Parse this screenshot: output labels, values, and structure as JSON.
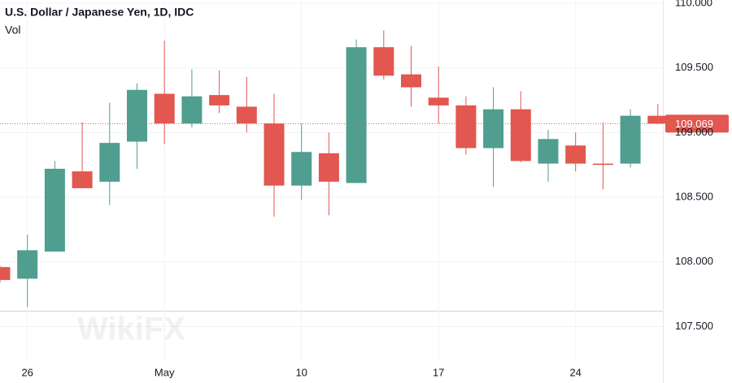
{
  "chart_data": {
    "type": "candlestick",
    "title": "U.S. Dollar / Japanese Yen, 1D, IDC",
    "subtitle": "Vol",
    "watermark": "WikiFX",
    "categories": [
      null,
      "26",
      null,
      null,
      null,
      null,
      "May",
      null,
      null,
      null,
      null,
      "10",
      null,
      null,
      null,
      null,
      "17",
      null,
      null,
      null,
      null,
      "24",
      null,
      null,
      null
    ],
    "open": [
      107.96,
      107.87,
      108.08,
      108.7,
      108.62,
      108.93,
      109.3,
      109.07,
      109.29,
      109.2,
      109.07,
      108.59,
      108.84,
      108.61,
      109.66,
      109.45,
      109.27,
      109.21,
      108.88,
      109.18,
      108.76,
      108.9,
      108.76,
      108.76,
      109.13
    ],
    "high": [
      107.97,
      108.21,
      108.78,
      109.08,
      109.23,
      109.38,
      109.71,
      109.49,
      109.48,
      109.43,
      109.3,
      109.07,
      109.0,
      109.72,
      109.79,
      109.67,
      109.51,
      109.28,
      109.35,
      109.32,
      109.02,
      109.0,
      109.08,
      109.18,
      109.22
    ],
    "low": [
      107.84,
      107.65,
      108.08,
      108.57,
      108.44,
      108.72,
      108.91,
      109.04,
      109.15,
      109.0,
      108.35,
      108.48,
      108.36,
      108.61,
      109.41,
      109.2,
      109.07,
      108.83,
      108.58,
      108.77,
      108.62,
      108.7,
      108.56,
      108.73,
      109.069
    ],
    "close": [
      107.86,
      108.09,
      108.72,
      108.57,
      108.92,
      109.33,
      109.07,
      109.28,
      109.21,
      109.07,
      108.59,
      108.85,
      108.62,
      109.66,
      109.44,
      109.35,
      109.21,
      108.88,
      109.18,
      108.78,
      108.95,
      108.76,
      108.75,
      109.13,
      109.069
    ],
    "up_color": "#4f9e8f",
    "down_color": "#e2574f",
    "last_price": 109.069,
    "ylim": [
      107.233,
      110.025
    ],
    "yticks": [
      {
        "value": 107.5,
        "label": "107.500"
      },
      {
        "value": 108,
        "label": "108.000"
      },
      {
        "value": 108.5,
        "label": "108.500"
      },
      {
        "value": 109,
        "label": "109.000"
      },
      {
        "value": 109.5,
        "label": "109.500"
      },
      {
        "value": 110,
        "label": "110.000"
      }
    ],
    "grid": true
  }
}
